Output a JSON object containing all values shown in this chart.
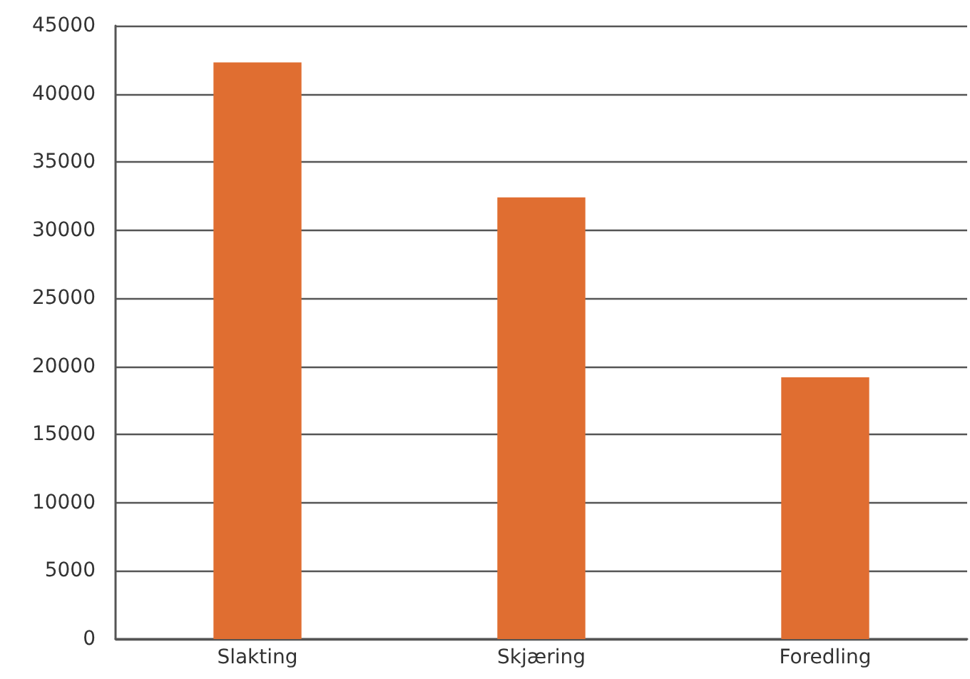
{
  "chart_data": {
    "type": "bar",
    "categories": [
      "Slakting",
      "Skjæring",
      "Foredling"
    ],
    "values": [
      42300,
      32400,
      19200
    ],
    "color": "#e06e31",
    "ylim": [
      0,
      45000
    ],
    "yticks": [
      0,
      5000,
      10000,
      15000,
      20000,
      25000,
      30000,
      35000,
      40000,
      45000
    ],
    "grid": "y"
  }
}
